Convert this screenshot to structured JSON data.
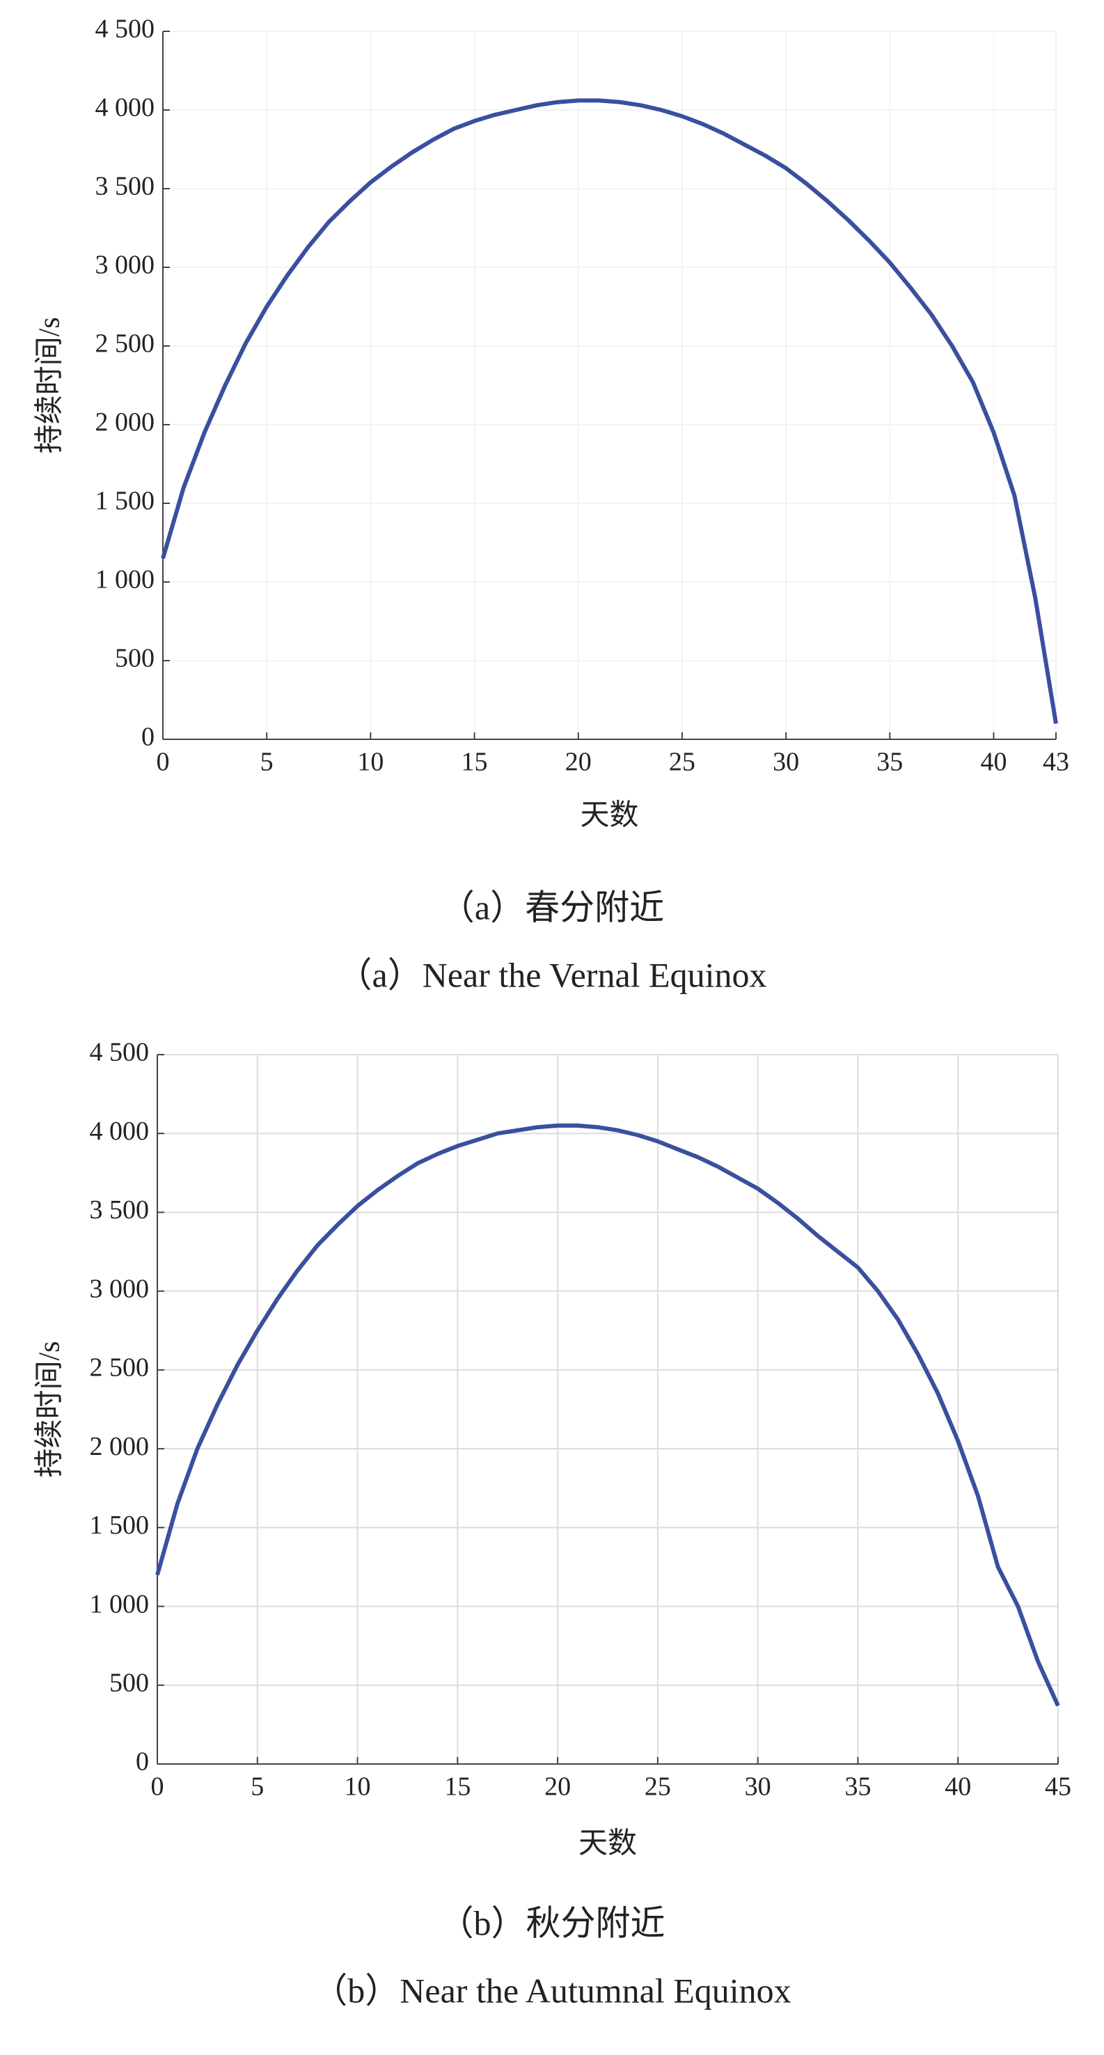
{
  "chart_data": [
    {
      "type": "line",
      "xlabel": "天数",
      "ylabel": "持续时间/s",
      "caption_cn": "（a）春分附近",
      "caption_en": "（a）Near the Vernal Equinox",
      "x": [
        0,
        1,
        2,
        3,
        4,
        5,
        6,
        7,
        8,
        9,
        10,
        11,
        12,
        13,
        14,
        15,
        16,
        17,
        18,
        19,
        20,
        21,
        22,
        23,
        24,
        25,
        26,
        27,
        28,
        29,
        30,
        31,
        32,
        33,
        34,
        35,
        36,
        37,
        38,
        39,
        40,
        41,
        42,
        43
      ],
      "values": [
        1150,
        1600,
        1950,
        2250,
        2520,
        2750,
        2950,
        3130,
        3290,
        3420,
        3540,
        3640,
        3730,
        3810,
        3880,
        3930,
        3970,
        4000,
        4030,
        4050,
        4060,
        4060,
        4050,
        4030,
        4000,
        3960,
        3910,
        3850,
        3780,
        3710,
        3630,
        3530,
        3420,
        3300,
        3170,
        3030,
        2870,
        2700,
        2500,
        2270,
        1950,
        1550,
        900,
        100
      ],
      "color": "#3a4f9e",
      "xlim": [
        0,
        43
      ],
      "xticks": [
        0,
        5,
        10,
        15,
        20,
        25,
        30,
        35,
        40,
        43
      ],
      "ylim": [
        0,
        4500
      ],
      "yticks": [
        0,
        500,
        {
          "value": 1000,
          "label": "1 000"
        },
        {
          "value": 1500,
          "label": "1 500"
        },
        {
          "value": 2000,
          "label": "2 000"
        },
        {
          "value": 2500,
          "label": "2 500"
        },
        {
          "value": 3000,
          "label": "3 000"
        },
        {
          "value": 3500,
          "label": "3 500"
        },
        {
          "value": 4000,
          "label": "4 000"
        },
        {
          "value": 4500,
          "label": "4 500"
        }
      ],
      "grid": true,
      "grid_color": "#f3f3f3"
    },
    {
      "type": "line",
      "xlabel": "天数",
      "ylabel": "持续时间/s",
      "caption_cn": "（b）秋分附近",
      "caption_en": "（b）Near the Autumnal Equinox",
      "x": [
        0,
        1,
        2,
        3,
        4,
        5,
        6,
        7,
        8,
        9,
        10,
        11,
        12,
        13,
        14,
        15,
        16,
        17,
        18,
        19,
        20,
        21,
        22,
        23,
        24,
        25,
        26,
        27,
        28,
        29,
        30,
        31,
        32,
        33,
        34,
        35,
        36,
        37,
        38,
        39,
        40,
        41,
        42,
        43,
        44,
        45
      ],
      "values": [
        1200,
        1650,
        2000,
        2280,
        2530,
        2750,
        2950,
        3130,
        3290,
        3420,
        3540,
        3640,
        3730,
        3810,
        3870,
        3920,
        3960,
        4000,
        4020,
        4040,
        4050,
        4050,
        4040,
        4020,
        3990,
        3950,
        3900,
        3850,
        3790,
        3720,
        3650,
        3560,
        3460,
        3350,
        3250,
        3150,
        3000,
        2820,
        2600,
        2350,
        2050,
        1700,
        1250,
        1000,
        650,
        370
      ],
      "color": "#3a4f9e",
      "xlim": [
        0,
        45
      ],
      "xticks": [
        0,
        5,
        10,
        15,
        20,
        25,
        30,
        35,
        40,
        45
      ],
      "ylim": [
        0,
        4500
      ],
      "yticks": [
        0,
        500,
        {
          "value": 1000,
          "label": "1 000"
        },
        {
          "value": 1500,
          "label": "1 500"
        },
        {
          "value": 2000,
          "label": "2 000"
        },
        {
          "value": 2500,
          "label": "2 500"
        },
        {
          "value": 3000,
          "label": "3 000"
        },
        {
          "value": 3500,
          "label": "3 500"
        },
        {
          "value": 4000,
          "label": "4 000"
        },
        {
          "value": 4500,
          "label": "4 500"
        }
      ],
      "grid": true,
      "grid_color": "#dcdcdc"
    }
  ]
}
